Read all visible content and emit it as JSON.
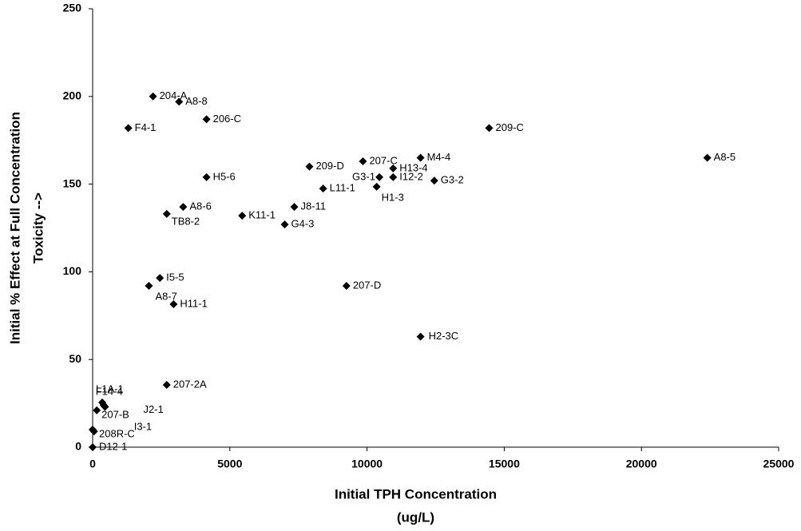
{
  "chart_data": {
    "type": "scatter",
    "x_label": [
      "Initial TPH Concentration",
      "(ug/L)"
    ],
    "y_label": [
      "Initial % Effect at Full Concentration",
      "Toxicity -->"
    ],
    "point_labels": [
      "204-A",
      "A8-8",
      "F4-1",
      "206-C",
      "209-C",
      "A8-5",
      "H5-6",
      "209-D",
      "207-C",
      "M4-4",
      "G3-1",
      "H13-4",
      "I12-2",
      "G3-2",
      "L11-1",
      "H1-3",
      "A8-6",
      "TB8-2",
      "K11-1",
      "J8-11",
      "G4-3",
      "I5-5",
      "A8-7",
      "H11-1",
      "207-D",
      "H2-3C",
      "207-2A",
      "L1A-1",
      "F14-4",
      "207-B",
      "J2-1",
      "208R-C",
      "I3-1",
      "D12-1"
    ],
    "x": [
      2200,
      3150,
      1300,
      4150,
      14450,
      22400,
      4150,
      7900,
      9850,
      11950,
      10450,
      10950,
      10950,
      12450,
      8400,
      10350,
      3300,
      2700,
      5450,
      7350,
      7000,
      2450,
      2050,
      2950,
      9250,
      11950,
      2700,
      350,
      400,
      150,
      450,
      0,
      50,
      0
    ],
    "values": [
      200,
      197,
      182,
      187,
      182,
      165,
      154,
      160,
      163,
      165,
      154,
      159,
      154,
      152,
      147.5,
      148.5,
      137,
      133,
      132,
      137,
      127,
      96.5,
      92,
      81.5,
      92,
      63,
      35.5,
      25.5,
      24,
      21,
      23,
      10,
      9,
      0
    ],
    "color": "#000000",
    "xlim": [
      0,
      25000
    ],
    "xticks": [
      0,
      5000,
      10000,
      15000,
      20000,
      25000
    ],
    "ylim": [
      0,
      250
    ],
    "yticks": [
      0,
      50,
      100,
      150,
      200,
      250
    ],
    "grid": false
  }
}
